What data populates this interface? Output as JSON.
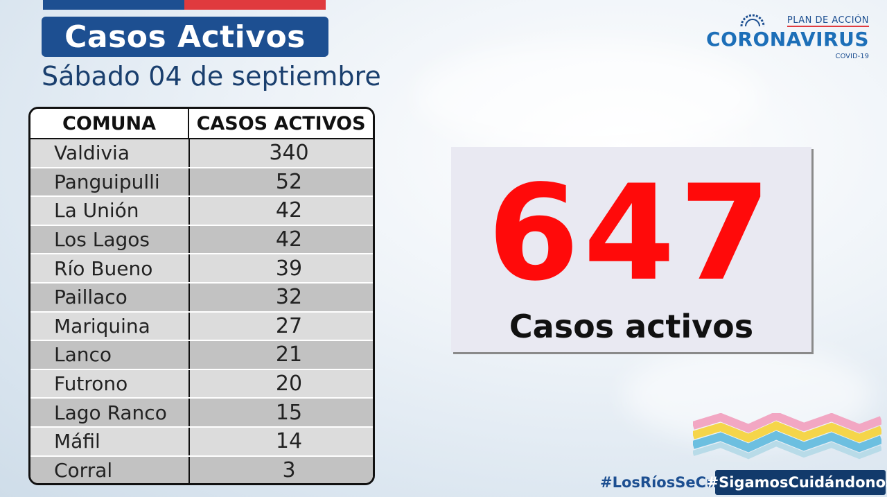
{
  "header": {
    "title": "Casos Activos",
    "date": "Sábado 04 de septiembre"
  },
  "logo": {
    "line1": "PLAN DE ACCIÓN",
    "line2": "CORONAVIRUS",
    "line3": "COVID-19"
  },
  "table": {
    "col_comuna": "COMUNA",
    "col_casos": "CASOS ACTIVOS",
    "rows": [
      {
        "comuna": "Valdivia",
        "casos": "340"
      },
      {
        "comuna": "Panguipulli",
        "casos": "52"
      },
      {
        "comuna": "La Unión",
        "casos": "42"
      },
      {
        "comuna": "Los Lagos",
        "casos": "42"
      },
      {
        "comuna": "Río Bueno",
        "casos": "39"
      },
      {
        "comuna": "Paillaco",
        "casos": "32"
      },
      {
        "comuna": "Mariquina",
        "casos": "27"
      },
      {
        "comuna": "Lanco",
        "casos": "21"
      },
      {
        "comuna": "Futrono",
        "casos": "20"
      },
      {
        "comuna": "Lago Ranco",
        "casos": "15"
      },
      {
        "comuna": "Máfil",
        "casos": "14"
      },
      {
        "comuna": "Corral",
        "casos": "3"
      }
    ]
  },
  "summary": {
    "total": "647",
    "label": "Casos activos"
  },
  "footer": {
    "hashtag1": "#LosRíosSeCuida",
    "hashtag2": "#SigamosCuidándonos"
  },
  "colors": {
    "primary_blue": "#1d4f91",
    "accent_red": "#e03a3e",
    "total_red": "#ff0a0a"
  }
}
